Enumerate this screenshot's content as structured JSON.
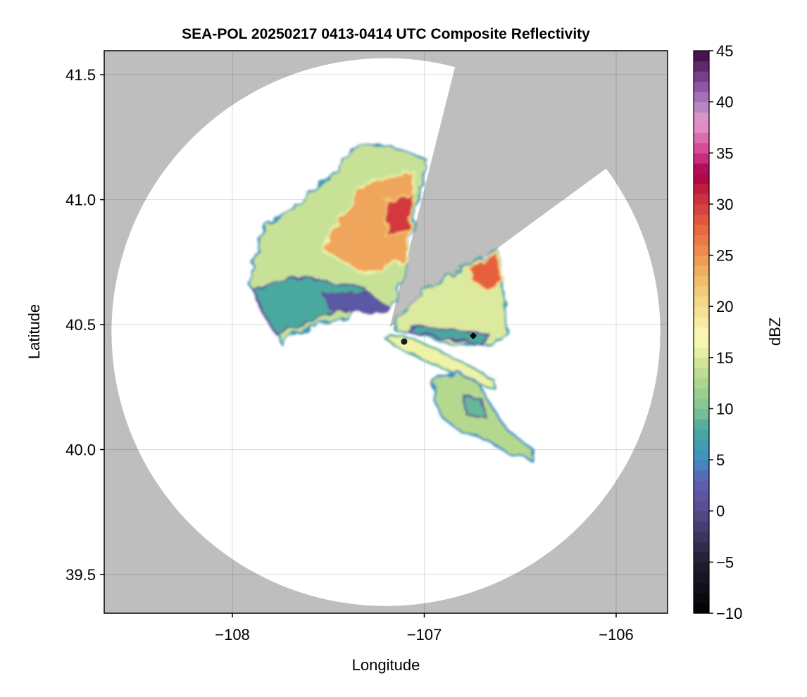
{
  "chart_data": {
    "type": "heatmap",
    "title": "SEA-POL 20250217 0413-0414 UTC Composite Reflectivity",
    "xlabel": "Longitude",
    "ylabel": "Latitude",
    "xlim": [
      -108.668,
      -105.732
    ],
    "ylim": [
      39.345,
      41.596
    ],
    "xticks": [
      -108,
      -107,
      -106
    ],
    "xtick_labels": [
      "−108",
      "−107",
      "−106"
    ],
    "yticks": [
      39.5,
      40.0,
      40.5,
      41.0,
      41.5
    ],
    "ytick_labels": [
      "39.5",
      "40.0",
      "40.5",
      "41.0",
      "41.5"
    ],
    "grid": true,
    "missing_color": "#bebebe",
    "no_echo_color": "#ffffff",
    "colorbar": {
      "label": "dBZ",
      "range": [
        -10,
        45
      ],
      "step": 1,
      "ticks": [
        -10,
        -5,
        0,
        5,
        10,
        15,
        20,
        25,
        30,
        35,
        40,
        45
      ],
      "tick_labels": [
        "−10",
        "−5",
        "0",
        "5",
        "10",
        "15",
        "20",
        "25",
        "30",
        "35",
        "40",
        "45"
      ],
      "stops": [
        [
          -10,
          "#000000"
        ],
        [
          -5,
          "#221d30"
        ],
        [
          0,
          "#584a8e"
        ],
        [
          3,
          "#6060b2"
        ],
        [
          5,
          "#3e8ec2"
        ],
        [
          8,
          "#4aa99e"
        ],
        [
          10,
          "#80c495"
        ],
        [
          13,
          "#b4d98e"
        ],
        [
          16,
          "#eef3a8"
        ],
        [
          17,
          "#fbfab9"
        ],
        [
          20,
          "#f4dc8e"
        ],
        [
          23,
          "#efb766"
        ],
        [
          25,
          "#ee9450"
        ],
        [
          28,
          "#e6603e"
        ],
        [
          31,
          "#c8263e"
        ],
        [
          33,
          "#a6004a"
        ],
        [
          35,
          "#d23c8c"
        ],
        [
          38,
          "#e79ccc"
        ],
        [
          40,
          "#ad7fbf"
        ],
        [
          42,
          "#86489a"
        ],
        [
          45,
          "#3a0a42"
        ]
      ]
    },
    "radar_coverage": {
      "center": [
        -107.2,
        40.47
      ],
      "radius_lon": 1.43,
      "radius_lat": 1.096
    },
    "blocked_sector": [
      [
        -107.18,
        40.49
      ],
      [
        -106.5,
        42.57
      ],
      [
        -104.94,
        42.57
      ],
      [
        -104.94,
        41.75
      ]
    ],
    "echo_regions": [
      {
        "name": "northwest-cell",
        "dbz": 14,
        "points": [
          [
            -107.3,
            41.22
          ],
          [
            -107.16,
            41.21
          ],
          [
            -106.99,
            41.16
          ],
          [
            -107.12,
            40.67
          ],
          [
            -107.17,
            40.56
          ],
          [
            -107.34,
            40.59
          ],
          [
            -107.41,
            40.53
          ],
          [
            -107.67,
            40.47
          ],
          [
            -107.74,
            40.42
          ],
          [
            -107.82,
            40.56
          ],
          [
            -107.91,
            40.66
          ],
          [
            -107.89,
            40.76
          ],
          [
            -107.82,
            40.9
          ],
          [
            -107.72,
            40.95
          ],
          [
            -107.6,
            41.01
          ],
          [
            -107.45,
            41.12
          ],
          [
            -107.39,
            41.19
          ]
        ]
      },
      {
        "name": "northwest-teal",
        "dbz": 8,
        "points": [
          [
            -107.89,
            40.64
          ],
          [
            -107.67,
            40.69
          ],
          [
            -107.49,
            40.67
          ],
          [
            -107.3,
            40.64
          ],
          [
            -107.34,
            40.59
          ],
          [
            -107.63,
            40.5
          ],
          [
            -107.78,
            40.47
          ],
          [
            -107.85,
            40.56
          ]
        ]
      },
      {
        "name": "northwest-edge",
        "dbz": 2,
        "points": [
          [
            -107.52,
            40.62
          ],
          [
            -107.3,
            40.63
          ],
          [
            -107.17,
            40.56
          ],
          [
            -107.21,
            40.55
          ],
          [
            -107.38,
            40.56
          ],
          [
            -107.49,
            40.56
          ]
        ]
      },
      {
        "name": "northwest-core",
        "dbz": 24,
        "points": [
          [
            -107.49,
            40.87
          ],
          [
            -107.3,
            41.07
          ],
          [
            -107.05,
            41.11
          ],
          [
            -107.09,
            40.76
          ],
          [
            -107.3,
            40.7
          ],
          [
            -107.52,
            40.79
          ]
        ]
      },
      {
        "name": "northwest-max",
        "dbz": 30,
        "points": [
          [
            -107.2,
            41.0
          ],
          [
            -107.05,
            41.02
          ],
          [
            -107.08,
            40.88
          ],
          [
            -107.2,
            40.85
          ]
        ]
      },
      {
        "name": "east-cell",
        "dbz": 15,
        "points": [
          [
            -107.14,
            40.53
          ],
          [
            -107.01,
            40.63
          ],
          [
            -106.79,
            40.73
          ],
          [
            -106.62,
            40.8
          ],
          [
            -106.59,
            40.67
          ],
          [
            -106.57,
            40.47
          ],
          [
            -106.64,
            40.42
          ],
          [
            -106.86,
            40.42
          ],
          [
            -107.05,
            40.47
          ],
          [
            -107.14,
            40.47
          ]
        ]
      },
      {
        "name": "east-south-teal",
        "dbz": 8,
        "points": [
          [
            -107.08,
            40.47
          ],
          [
            -106.86,
            40.44
          ],
          [
            -106.7,
            40.42
          ],
          [
            -106.66,
            40.46
          ],
          [
            -106.9,
            40.48
          ],
          [
            -107.05,
            40.5
          ]
        ]
      },
      {
        "name": "east-core",
        "dbz": 28,
        "points": [
          [
            -106.77,
            40.73
          ],
          [
            -106.62,
            40.79
          ],
          [
            -106.59,
            40.67
          ],
          [
            -106.68,
            40.64
          ],
          [
            -106.75,
            40.67
          ]
        ]
      },
      {
        "name": "streak",
        "dbz": 16,
        "points": [
          [
            -107.21,
            40.45
          ],
          [
            -107.08,
            40.45
          ],
          [
            -106.83,
            40.36
          ],
          [
            -106.64,
            40.28
          ],
          [
            -106.63,
            40.24
          ],
          [
            -106.86,
            40.31
          ],
          [
            -107.01,
            40.36
          ],
          [
            -107.16,
            40.42
          ]
        ]
      },
      {
        "name": "south-cell",
        "dbz": 13,
        "points": [
          [
            -106.95,
            40.28
          ],
          [
            -106.83,
            40.31
          ],
          [
            -106.72,
            40.27
          ],
          [
            -106.64,
            40.16
          ],
          [
            -106.57,
            40.08
          ],
          [
            -106.42,
            39.99
          ],
          [
            -106.44,
            39.96
          ],
          [
            -106.57,
            39.99
          ],
          [
            -106.68,
            40.04
          ],
          [
            -106.83,
            40.08
          ],
          [
            -106.92,
            40.14
          ],
          [
            -106.95,
            40.21
          ]
        ]
      },
      {
        "name": "south-teal",
        "dbz": 9,
        "points": [
          [
            -106.8,
            40.22
          ],
          [
            -106.7,
            40.2
          ],
          [
            -106.68,
            40.13
          ],
          [
            -106.78,
            40.14
          ]
        ]
      }
    ],
    "markers": [
      {
        "name": "diamond",
        "lon": -106.745,
        "lat": 40.455
      },
      {
        "name": "dot",
        "lon": -107.105,
        "lat": 40.432
      }
    ]
  }
}
